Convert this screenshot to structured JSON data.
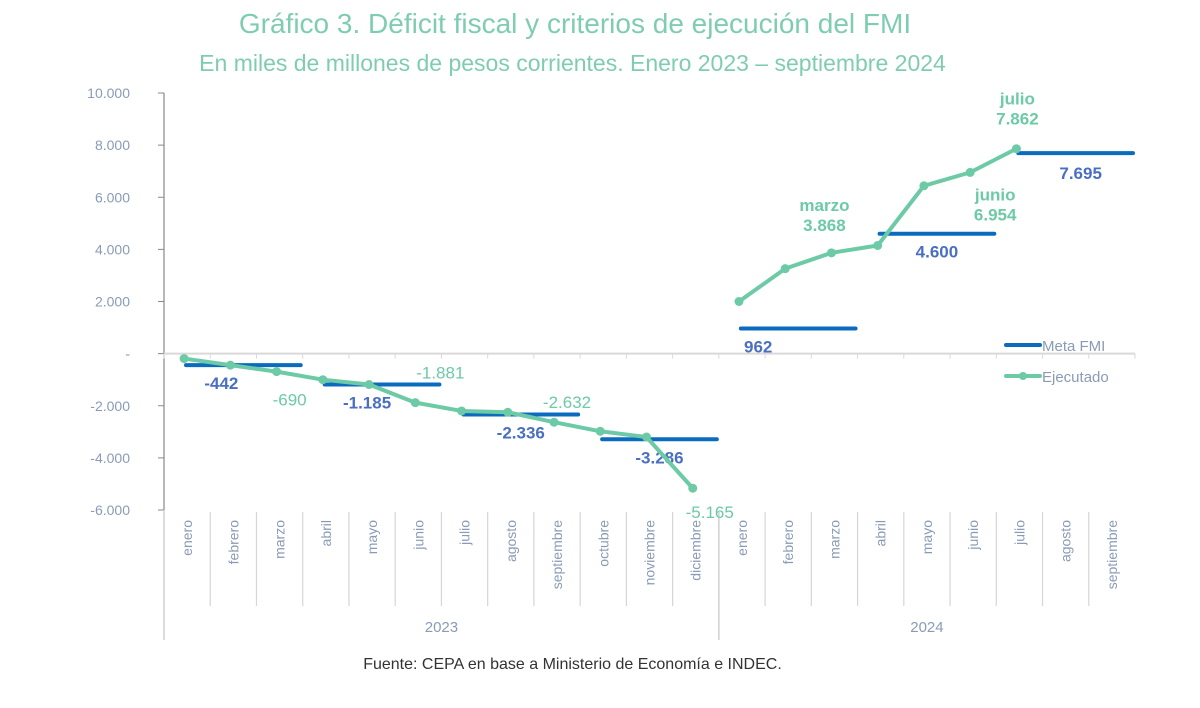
{
  "chart_data": {
    "type": "line",
    "title": "Gráfico 3. Déficit fiscal y criterios de ejecución del FMI",
    "subtitle": "En miles de millones de pesos corrientes. Enero 2023 – septiembre 2024",
    "ylim": [
      -6000,
      10000
    ],
    "yticks": [
      10000,
      8000,
      6000,
      4000,
      2000,
      0,
      -2000,
      -4000,
      -6000
    ],
    "ytick_labels": [
      "10.000",
      "8.000",
      "6.000",
      "4.000",
      "2.000",
      "-",
      "-2.000",
      "-4.000",
      "-6.000"
    ],
    "grid": false,
    "legend_position": "right",
    "x_groups": [
      {
        "year": "2023",
        "months": [
          "enero",
          "febrero",
          "marzo",
          "abril",
          "mayo",
          "junio",
          "julio",
          "agosto",
          "septiembre",
          "octubre",
          "noviembre",
          "diciembre"
        ]
      },
      {
        "year": "2024",
        "months": [
          "enero",
          "febrero",
          "marzo",
          "abril",
          "mayo",
          "junio",
          "julio",
          "agosto",
          "septiembre"
        ]
      }
    ],
    "series": [
      {
        "name": "Meta FMI",
        "color": "#0b6bbf",
        "type": "step-segments",
        "segments": [
          {
            "start": 0,
            "end": 2,
            "value": -442,
            "label": "-442"
          },
          {
            "start": 3,
            "end": 5,
            "value": -1185,
            "label": "-1.185"
          },
          {
            "start": 6,
            "end": 8,
            "value": -2336,
            "label": "-2.336"
          },
          {
            "start": 9,
            "end": 11,
            "value": -3286,
            "label": "-3.286"
          },
          {
            "start": 12,
            "end": 14,
            "value": 962,
            "label": "962"
          },
          {
            "start": 15,
            "end": 17,
            "value": 4600,
            "label": "4.600"
          },
          {
            "start": 18,
            "end": 20,
            "value": 7695,
            "label": "7.695"
          }
        ]
      },
      {
        "name": "Ejecutado",
        "color": "#6ccaa6",
        "type": "line",
        "segments_values": [
          [
            -190,
            -442,
            -690,
            -1000,
            -1185,
            -1881,
            -2200,
            -2250,
            -2632,
            -2980,
            -3200,
            -5165
          ],
          [
            2000,
            3260,
            3868,
            4150,
            6440,
            6954,
            7862
          ]
        ],
        "start_index": [
          0,
          12
        ],
        "annotations": [
          {
            "index": 2,
            "text": "-690"
          },
          {
            "index": 5,
            "text": "-1.881"
          },
          {
            "index": 8,
            "text": "-2.632"
          },
          {
            "index": 11,
            "text": "-5.165"
          },
          {
            "index": 14,
            "month": "marzo",
            "text": "3.868"
          },
          {
            "index": 17,
            "month": "junio",
            "text": "6.954"
          },
          {
            "index": 18,
            "month": "julio",
            "text": "7.862"
          }
        ]
      }
    ]
  },
  "source": "Fuente: CEPA en base a Ministerio de Economía e INDEC."
}
